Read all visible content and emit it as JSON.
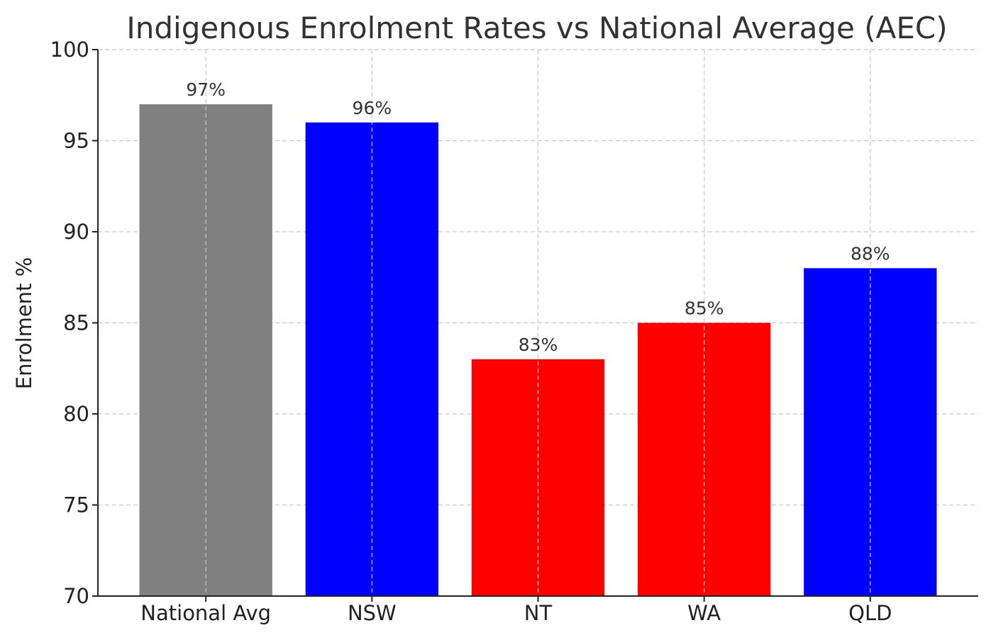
{
  "chart_data": {
    "type": "bar",
    "title": "Indigenous Enrolment Rates vs National Average (AEC)",
    "xlabel": "",
    "ylabel": "Enrolment %",
    "categories": [
      "National Avg",
      "NSW",
      "NT",
      "WA",
      "QLD"
    ],
    "values": [
      97,
      96,
      83,
      85,
      88
    ],
    "data_labels": [
      "97%",
      "96%",
      "83%",
      "85%",
      "88%"
    ],
    "bar_colors": [
      "#808080",
      "#0000ff",
      "#ff0000",
      "#ff0000",
      "#0000ff"
    ],
    "ylim": [
      70,
      100
    ],
    "yticks": [
      70,
      75,
      80,
      85,
      90,
      95,
      100
    ],
    "ytick_labels": [
      "70",
      "75",
      "80",
      "85",
      "90",
      "95",
      "100"
    ],
    "grid": true,
    "legend": false
  }
}
